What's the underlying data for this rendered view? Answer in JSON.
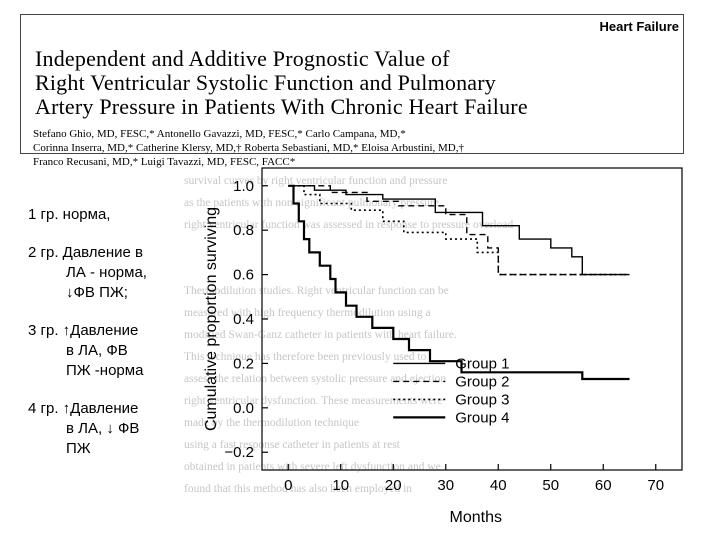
{
  "header": {
    "journal": "Heart Failure",
    "title_lines": [
      "Independent and Additive Prognostic Value of",
      "Right Ventricular Systolic Function and Pulmonary",
      "Artery Pressure in Patients With Chronic Heart Failure"
    ],
    "authors_lines": [
      "Stefano Ghio, MD, FESC,* Antonello Gavazzi, MD, FESC,* Carlo Campana, MD,*",
      "Corinna Inserra, MD,* Catherine Klersy, MD,† Roberta Sebastiani, MD,* Eloisa Arbustini, MD,†",
      "Franco Recusani, MD,* Luigi Tavazzi, MD, FESC, FACC*"
    ]
  },
  "groups": [
    {
      "line1": "1 гр. норма,",
      "line2": ""
    },
    {
      "line1": "2 гр. Давление в",
      "line2": "ЛА - норма,",
      "line3": "↓ФВ ПЖ;"
    },
    {
      "line1": "3 гр. ↑Давление",
      "line2": "в ЛА, ФВ",
      "line3": "ПЖ -норма"
    },
    {
      "line1": "4 гр. ↑Давление",
      "line2": "в ЛА, ↓ ФВ",
      "line3": "ПЖ"
    }
  ],
  "background_text": [
    "survival curves by right ventricular function and pressure",
    "as the patients with non-significant pulmonary pressure",
    "right ventricular function was assessed in response to pressure overload",
    "",
    "",
    "Thermodilution studies. Right ventricular function can be",
    "measured with high frequency thermodilution using a",
    "modified Swan-Ganz catheter in patients with heart failure.",
    "This technique has therefore been previously used to",
    "assess the relation between systolic pressure and ejection",
    "right ventricular dysfunction. These measurements were",
    "made by the thermodilution technique",
    "using a fast response catheter in patients at rest",
    "obtained in patients with severe left dysfunction and we",
    "found that this method has also been employed in"
  ],
  "chart_data": {
    "type": "line",
    "title": "",
    "xlabel": "Months",
    "ylabel": "Cumulative proportion surviving",
    "xlim": [
      -5,
      75
    ],
    "ylim": [
      -0.28,
      1.08
    ],
    "xticks": [
      0,
      10,
      20,
      30,
      40,
      50,
      60,
      70
    ],
    "yticks": [
      -0.2,
      0.0,
      0.2,
      0.4,
      0.6,
      0.8,
      1.0
    ],
    "ytick_labels": [
      "−0.2",
      "0.0",
      "0.2",
      "0.4",
      "0.6",
      "0.8",
      "1.0"
    ],
    "legend": {
      "placement": "lower-right"
    },
    "series": [
      {
        "name": "Group 1",
        "style": "solid",
        "points": [
          [
            0,
            1.0
          ],
          [
            5,
            1.0
          ],
          [
            5,
            0.98
          ],
          [
            11,
            0.98
          ],
          [
            11,
            0.96
          ],
          [
            18,
            0.96
          ],
          [
            18,
            0.94
          ],
          [
            28,
            0.94
          ],
          [
            28,
            0.88
          ],
          [
            37,
            0.88
          ],
          [
            37,
            0.82
          ],
          [
            44,
            0.82
          ],
          [
            44,
            0.76
          ],
          [
            50,
            0.76
          ],
          [
            50,
            0.72
          ],
          [
            54,
            0.72
          ],
          [
            54,
            0.68
          ],
          [
            56,
            0.68
          ],
          [
            56,
            0.6
          ],
          [
            65,
            0.6
          ]
        ]
      },
      {
        "name": "Group 2",
        "style": "dashed",
        "points": [
          [
            0,
            1.0
          ],
          [
            8,
            1.0
          ],
          [
            8,
            0.97
          ],
          [
            15,
            0.97
          ],
          [
            15,
            0.93
          ],
          [
            21,
            0.93
          ],
          [
            21,
            0.91
          ],
          [
            30,
            0.91
          ],
          [
            30,
            0.87
          ],
          [
            34,
            0.87
          ],
          [
            34,
            0.78
          ],
          [
            38,
            0.78
          ],
          [
            38,
            0.72
          ],
          [
            40,
            0.72
          ],
          [
            40,
            0.6
          ],
          [
            65,
            0.6
          ]
        ]
      },
      {
        "name": "Group 3",
        "style": "dotted",
        "points": [
          [
            0,
            1.0
          ],
          [
            3,
            1.0
          ],
          [
            3,
            0.96
          ],
          [
            6,
            0.96
          ],
          [
            6,
            0.92
          ],
          [
            12,
            0.92
          ],
          [
            12,
            0.89
          ],
          [
            18,
            0.89
          ],
          [
            18,
            0.84
          ],
          [
            22,
            0.84
          ],
          [
            22,
            0.79
          ],
          [
            30,
            0.79
          ],
          [
            30,
            0.76
          ],
          [
            36,
            0.76
          ],
          [
            36,
            0.7
          ],
          [
            40,
            0.7
          ],
          [
            40,
            0.6
          ],
          [
            65,
            0.6
          ]
        ]
      },
      {
        "name": "Group 4",
        "style": "solid-thick",
        "points": [
          [
            0,
            1.0
          ],
          [
            1,
            1.0
          ],
          [
            1,
            0.92
          ],
          [
            2,
            0.92
          ],
          [
            2,
            0.84
          ],
          [
            3,
            0.84
          ],
          [
            3,
            0.76
          ],
          [
            4,
            0.76
          ],
          [
            4,
            0.7
          ],
          [
            6,
            0.7
          ],
          [
            6,
            0.64
          ],
          [
            8,
            0.64
          ],
          [
            8,
            0.58
          ],
          [
            9,
            0.58
          ],
          [
            9,
            0.52
          ],
          [
            11,
            0.52
          ],
          [
            11,
            0.46
          ],
          [
            13,
            0.46
          ],
          [
            13,
            0.41
          ],
          [
            16,
            0.41
          ],
          [
            16,
            0.36
          ],
          [
            20,
            0.36
          ],
          [
            20,
            0.31
          ],
          [
            23,
            0.31
          ],
          [
            23,
            0.26
          ],
          [
            27,
            0.26
          ],
          [
            27,
            0.21
          ],
          [
            33,
            0.21
          ],
          [
            33,
            0.16
          ],
          [
            56,
            0.16
          ],
          [
            56,
            0.13
          ],
          [
            65,
            0.13
          ]
        ]
      }
    ]
  }
}
